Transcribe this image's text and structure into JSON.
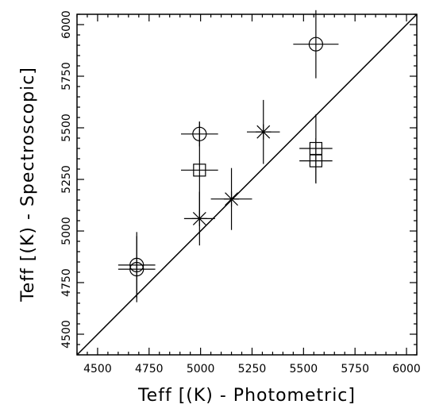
{
  "chart_data": {
    "type": "scatter",
    "xlabel": "Teff [(K) - Photometric]",
    "ylabel": "Teff [(K) - Spectroscopic]",
    "xlim": [
      4400,
      6050
    ],
    "ylim": [
      4400,
      6050
    ],
    "xticks": [
      4500,
      4750,
      5000,
      5250,
      5500,
      5750,
      6000
    ],
    "yticks": [
      4500,
      4750,
      5000,
      5250,
      5500,
      5750,
      6000
    ],
    "grid": false,
    "reference_line": "y = x",
    "series": [
      {
        "marker": "circle",
        "points": [
          {
            "x": 4690,
            "y": 4835,
            "xerr": 90,
            "yerr": 160
          },
          {
            "x": 4690,
            "y": 4815,
            "xerr": 90,
            "yerr": 160
          },
          {
            "x": 4995,
            "y": 5470,
            "xerr": 90,
            "yerr": 60
          },
          {
            "x": 5560,
            "y": 5905,
            "xerr": 110,
            "yerr": 165
          }
        ]
      },
      {
        "marker": "square",
        "points": [
          {
            "x": 4995,
            "y": 5295,
            "xerr": 90,
            "yerr": 235
          },
          {
            "x": 5560,
            "y": 5400,
            "xerr": 80,
            "yerr": 165
          },
          {
            "x": 5560,
            "y": 5340,
            "xerr": 80,
            "yerr": 110
          }
        ]
      },
      {
        "marker": "asterisk",
        "points": [
          {
            "x": 4995,
            "y": 5060,
            "xerr": 75,
            "yerr": 130
          },
          {
            "x": 5150,
            "y": 5155,
            "xerr": 100,
            "yerr": 150
          },
          {
            "x": 5305,
            "y": 5480,
            "xerr": 80,
            "yerr": 155
          }
        ]
      }
    ]
  }
}
